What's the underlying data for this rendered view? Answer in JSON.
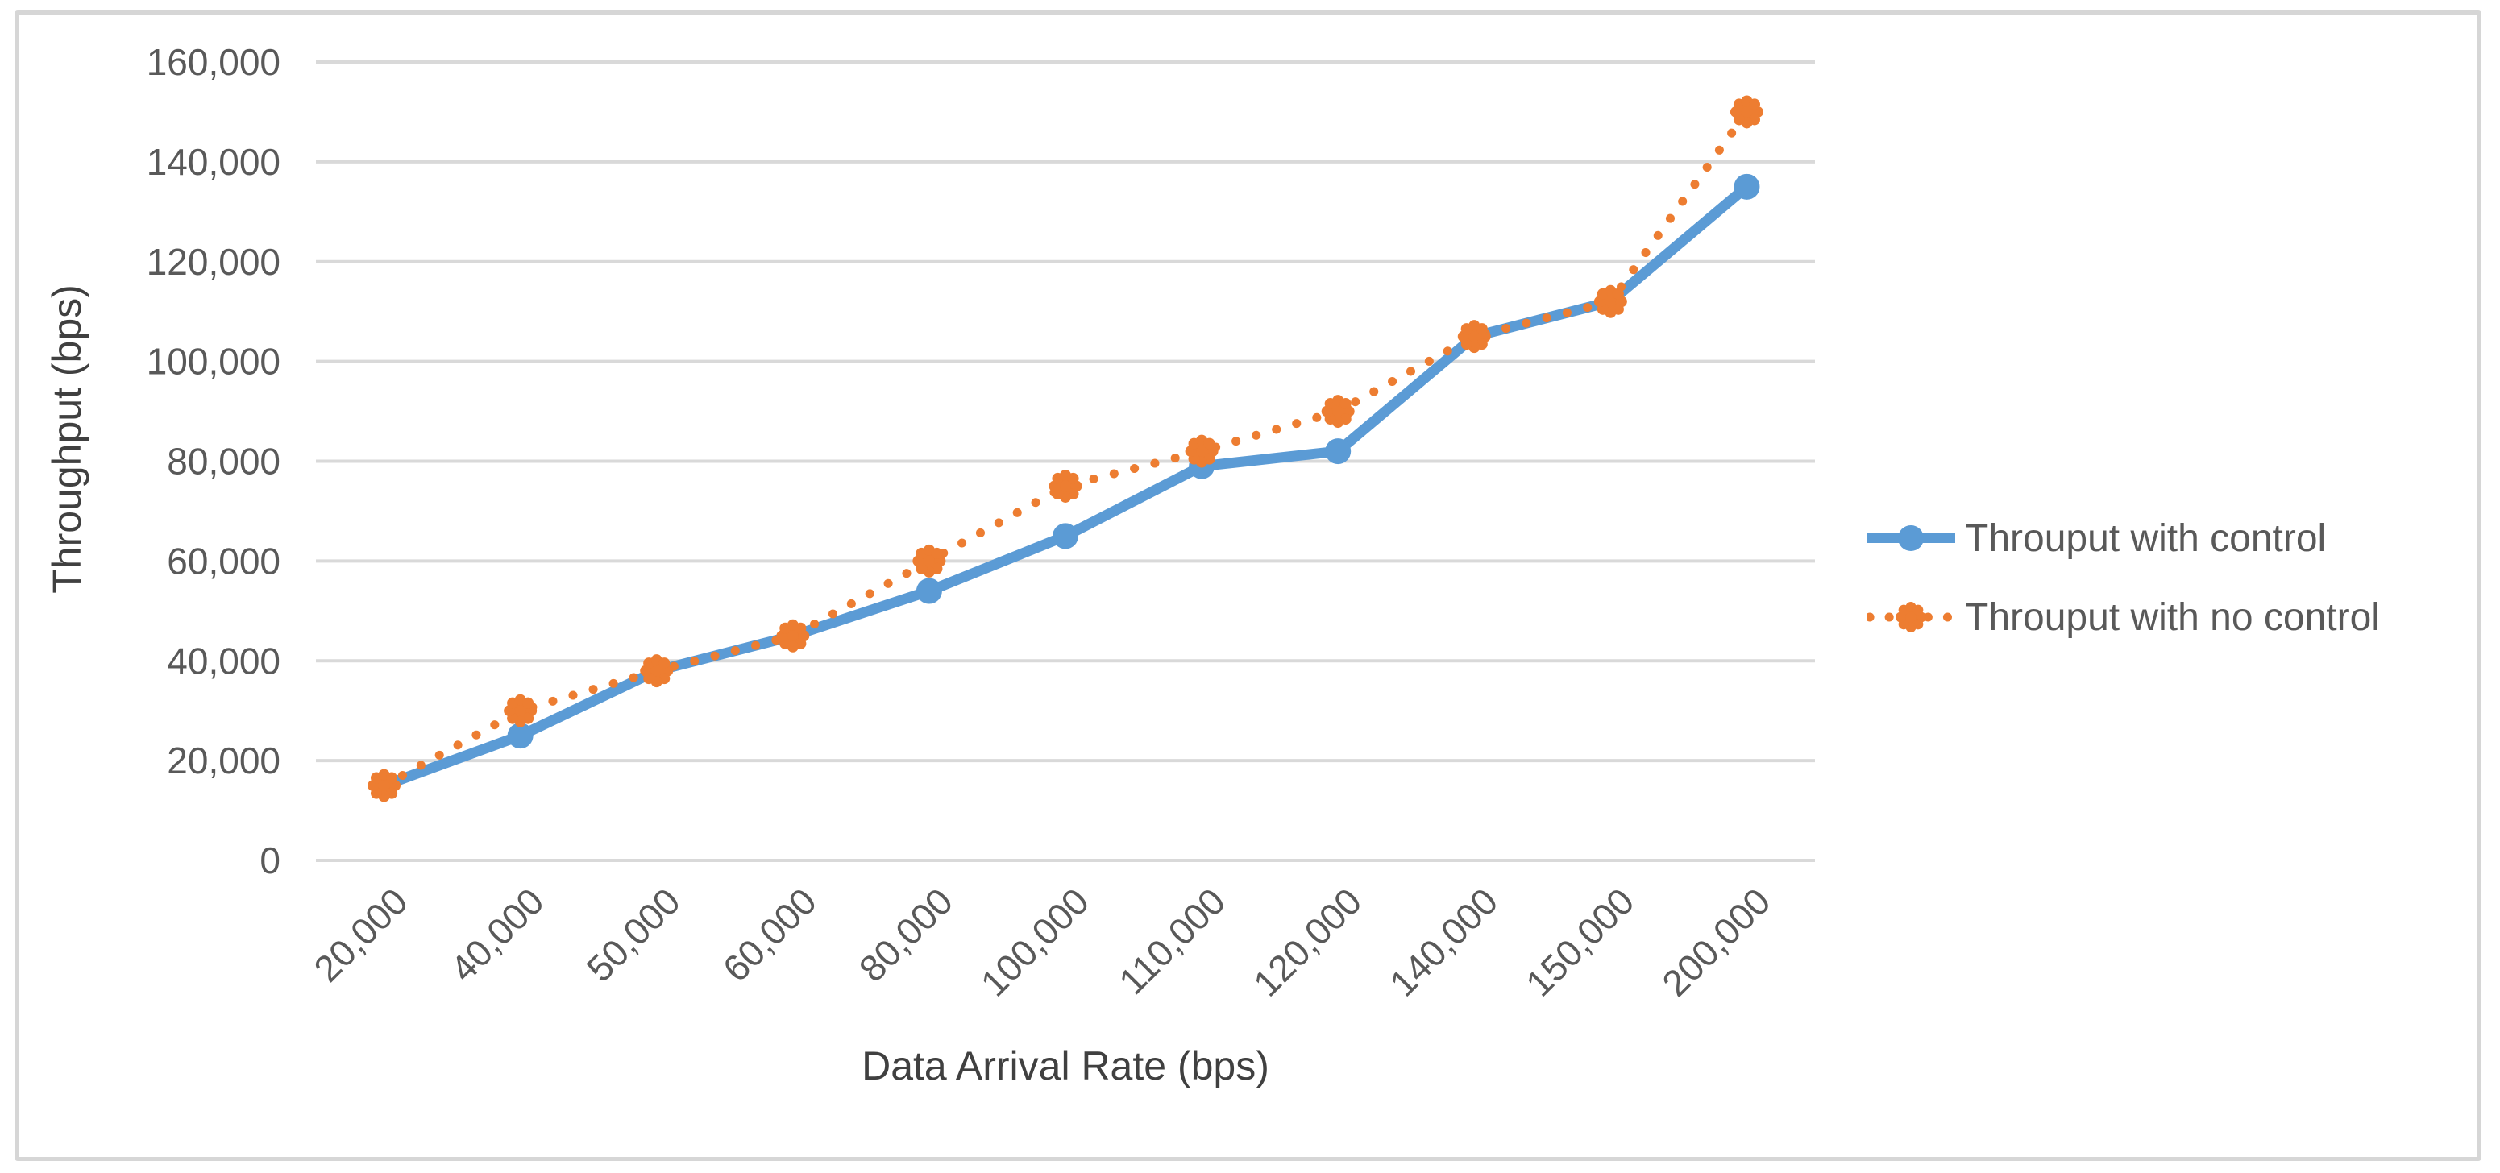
{
  "chart_data": {
    "type": "line",
    "title": "",
    "xlabel": "Data Arrival Rate (bps)",
    "ylabel": "Throughput (bps)",
    "categories": [
      20000,
      40000,
      50000,
      60000,
      80000,
      100000,
      110000,
      120000,
      140000,
      150000,
      200000
    ],
    "category_labels": [
      "20,000",
      "40,000",
      "50,000",
      "60,000",
      "80,000",
      "100,000",
      "110,000",
      "120,000",
      "140,000",
      "150,000",
      "200,000"
    ],
    "ylim": [
      0,
      160000
    ],
    "ytick_interval": 20000,
    "ytick_labels": [
      "0",
      "20,000",
      "40,000",
      "60,000",
      "80,000",
      "100,000",
      "120,000",
      "140,000",
      "160,000"
    ],
    "grid": "horizontal-only",
    "legend_position": "right",
    "series": [
      {
        "name": "Throuput with control",
        "color": "#5B9BD5",
        "line_style": "solid",
        "marker": "circle",
        "values": [
          15000,
          25000,
          38000,
          45000,
          54000,
          65000,
          79000,
          82000,
          105000,
          112000,
          135000
        ]
      },
      {
        "name": "Throuput with no control",
        "color": "#ED7D31",
        "line_style": "dotted",
        "marker": "flower-burst",
        "values": [
          15000,
          30000,
          38000,
          45000,
          60000,
          75000,
          82000,
          90000,
          105000,
          112000,
          150000
        ]
      }
    ]
  },
  "colors": {
    "background": "#FFFFFF",
    "grid": "#D9D9D9",
    "tick_text": "#595959",
    "axis_title_text": "#404040",
    "legend_text": "#595959",
    "figure_border": "#D6D6D6",
    "series_blue": "#5B9BD5",
    "series_orange": "#ED7D31"
  }
}
